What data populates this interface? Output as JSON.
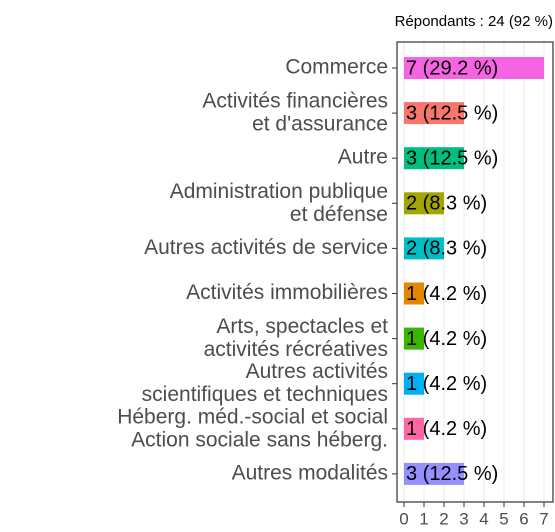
{
  "chart_data": {
    "type": "bar",
    "orientation": "horizontal",
    "subtitle": "Répondants : 24 (92 %)",
    "categories": [
      "Commerce",
      "Activités financières\net d'assurance",
      "Autre",
      "Administration publique\net défense",
      "Autres activités de service",
      "Activités immobilières",
      "Arts, spectacles et\nactivités récréatives",
      "Autres activités\nscientifiques et techniques",
      "Héberg. méd.-social et social\nAction sociale sans héberg.",
      "Autres modalités"
    ],
    "values": [
      7,
      3,
      3,
      2,
      2,
      1,
      1,
      1,
      1,
      3
    ],
    "value_labels": [
      "7 (29.2 %)",
      "3 (12.5 %)",
      "3 (12.5 %)",
      "2 (8.3 %)",
      "2 (8.3 %)",
      "1 (4.2 %)",
      "1 (4.2 %)",
      "1 (4.2 %)",
      "1 (4.2 %)",
      "3 (12.5 %)"
    ],
    "colors": [
      "#F564E3",
      "#F8766D",
      "#00BF7D",
      "#A3A500",
      "#00BFC4",
      "#E58700",
      "#39B600",
      "#00B0F6",
      "#FF67A4",
      "#9590FF"
    ],
    "xlim": [
      0,
      7
    ],
    "xticks": [
      0,
      1,
      2,
      3,
      4,
      5,
      6,
      7
    ],
    "grid": true
  }
}
